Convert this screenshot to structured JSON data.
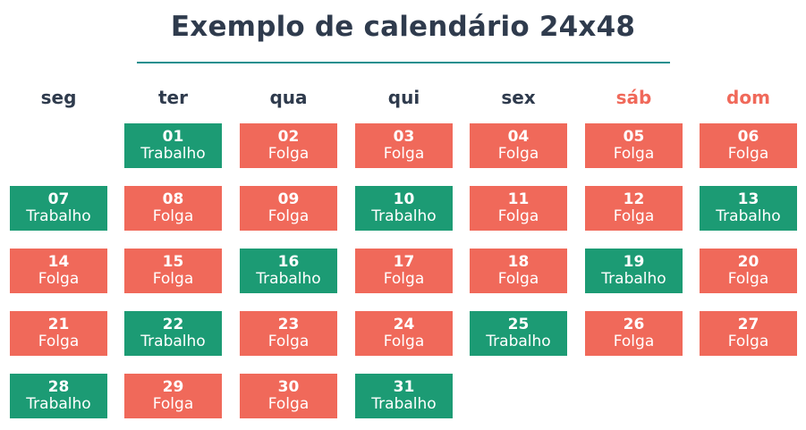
{
  "title": "Exemplo de calendário 24x48",
  "weekdays": [
    "seg",
    "ter",
    "qua",
    "qui",
    "sex",
    "sáb",
    "dom"
  ],
  "colors": {
    "trabalho": "#1c9b74",
    "folga": "#f0695a",
    "weekend_label": "#f0695a",
    "text": "#2f3b4d",
    "rule": "#1f8f8f"
  },
  "days": [
    {
      "day": "01",
      "label": "Trabalho"
    },
    {
      "day": "02",
      "label": "Folga"
    },
    {
      "day": "03",
      "label": "Folga"
    },
    {
      "day": "04",
      "label": "Folga"
    },
    {
      "day": "05",
      "label": "Folga"
    },
    {
      "day": "06",
      "label": "Folga"
    },
    {
      "day": "07",
      "label": "Trabalho"
    },
    {
      "day": "08",
      "label": "Folga"
    },
    {
      "day": "09",
      "label": "Folga"
    },
    {
      "day": "10",
      "label": "Trabalho"
    },
    {
      "day": "11",
      "label": "Folga"
    },
    {
      "day": "12",
      "label": "Folga"
    },
    {
      "day": "13",
      "label": "Trabalho"
    },
    {
      "day": "14",
      "label": "Folga"
    },
    {
      "day": "15",
      "label": "Folga"
    },
    {
      "day": "16",
      "label": "Trabalho"
    },
    {
      "day": "17",
      "label": "Folga"
    },
    {
      "day": "18",
      "label": "Folga"
    },
    {
      "day": "19",
      "label": "Trabalho"
    },
    {
      "day": "20",
      "label": "Folga"
    },
    {
      "day": "21",
      "label": "Folga"
    },
    {
      "day": "22",
      "label": "Trabalho"
    },
    {
      "day": "23",
      "label": "Folga"
    },
    {
      "day": "24",
      "label": "Folga"
    },
    {
      "day": "25",
      "label": "Trabalho"
    },
    {
      "day": "26",
      "label": "Folga"
    },
    {
      "day": "27",
      "label": "Folga"
    },
    {
      "day": "28",
      "label": "Trabalho"
    },
    {
      "day": "29",
      "label": "Folga"
    },
    {
      "day": "30",
      "label": "Folga"
    },
    {
      "day": "31",
      "label": "Trabalho"
    }
  ]
}
